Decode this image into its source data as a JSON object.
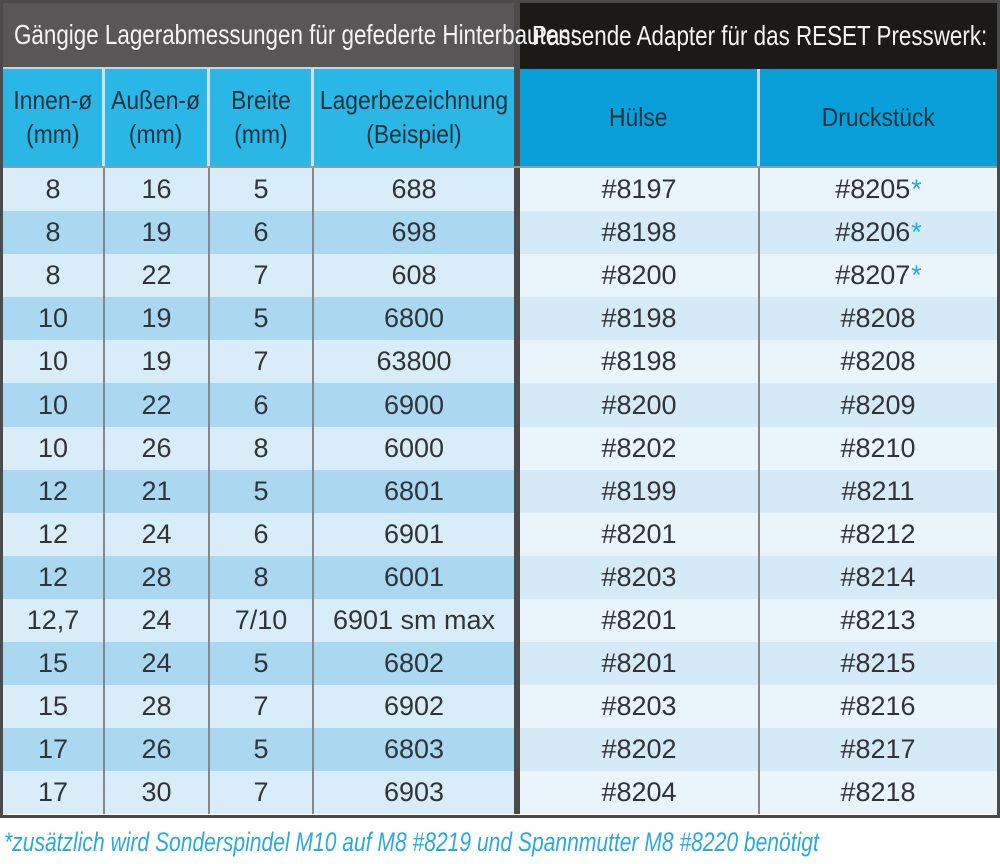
{
  "left_section": {
    "title": "Gängige Lagerabmessungen für gefederte Hinterbauten:",
    "headers": {
      "innen": {
        "line1": "Innen-ø",
        "line2": "(mm)"
      },
      "aussen": {
        "line1": "Außen-ø",
        "line2": "(mm)"
      },
      "breite": {
        "line1": "Breite",
        "line2": "(mm)"
      },
      "lager": {
        "line1": "Lagerbezeichnung",
        "line2": "(Beispiel)"
      }
    }
  },
  "right_section": {
    "title": "Passende Adapter für das RESET Presswerk:",
    "headers": {
      "huelse": "Hülse",
      "druckstueck": "Druckstück"
    }
  },
  "table": {
    "rows": [
      {
        "innen": "8",
        "aussen": "16",
        "breite": "5",
        "lager": "688",
        "huelse": "#8197",
        "druckstueck": "#8205",
        "star": "*"
      },
      {
        "innen": "8",
        "aussen": "19",
        "breite": "6",
        "lager": "698",
        "huelse": "#8198",
        "druckstueck": "#8206",
        "star": "*"
      },
      {
        "innen": "8",
        "aussen": "22",
        "breite": "7",
        "lager": "608",
        "huelse": "#8200",
        "druckstueck": "#8207",
        "star": "*"
      },
      {
        "innen": "10",
        "aussen": "19",
        "breite": "5",
        "lager": "6800",
        "huelse": "#8198",
        "druckstueck": "#8208"
      },
      {
        "innen": "10",
        "aussen": "19",
        "breite": "7",
        "lager": "63800",
        "huelse": "#8198",
        "druckstueck": "#8208"
      },
      {
        "innen": "10",
        "aussen": "22",
        "breite": "6",
        "lager": "6900",
        "huelse": "#8200",
        "druckstueck": "#8209"
      },
      {
        "innen": "10",
        "aussen": "26",
        "breite": "8",
        "lager": "6000",
        "huelse": "#8202",
        "druckstueck": "#8210"
      },
      {
        "innen": "12",
        "aussen": "21",
        "breite": "5",
        "lager": "6801",
        "huelse": "#8199",
        "druckstueck": "#8211"
      },
      {
        "innen": "12",
        "aussen": "24",
        "breite": "6",
        "lager": "6901",
        "huelse": "#8201",
        "druckstueck": "#8212"
      },
      {
        "innen": "12",
        "aussen": "28",
        "breite": "8",
        "lager": "6001",
        "huelse": "#8203",
        "druckstueck": "#8214"
      },
      {
        "innen": "12,7",
        "aussen": "24",
        "breite": "7/10",
        "lager": "6901 sm max",
        "huelse": "#8201",
        "druckstueck": "#8213"
      },
      {
        "innen": "15",
        "aussen": "24",
        "breite": "5",
        "lager": "6802",
        "huelse": "#8201",
        "druckstueck": "#8215"
      },
      {
        "innen": "15",
        "aussen": "28",
        "breite": "7",
        "lager": "6902",
        "huelse": "#8203",
        "druckstueck": "#8216"
      },
      {
        "innen": "17",
        "aussen": "26",
        "breite": "5",
        "lager": "6803",
        "huelse": "#8202",
        "druckstueck": "#8217"
      },
      {
        "innen": "17",
        "aussen": "30",
        "breite": "7",
        "lager": "6903",
        "huelse": "#8204",
        "druckstueck": "#8218"
      }
    ]
  },
  "footnote": "*zusätzlich wird Sonderspindel M10 auf M8 #8219 und Spannmutter M8 #8220 benötigt",
  "colors": {
    "title_left_bg": "#595657",
    "title_right_bg": "#1c1919",
    "header_cyan_left": "#2bb7e5",
    "header_cyan_right": "#09a0d9",
    "stripe_left_light": "#d9edf9",
    "stripe_left_medium": "#aad8f1",
    "stripe_right_light": "#eaf4fb",
    "stripe_right_medium": "#d5eaf7",
    "accent_cyan": "#29a9e0",
    "data_text": "#303439",
    "header_text": "#17333f"
  }
}
